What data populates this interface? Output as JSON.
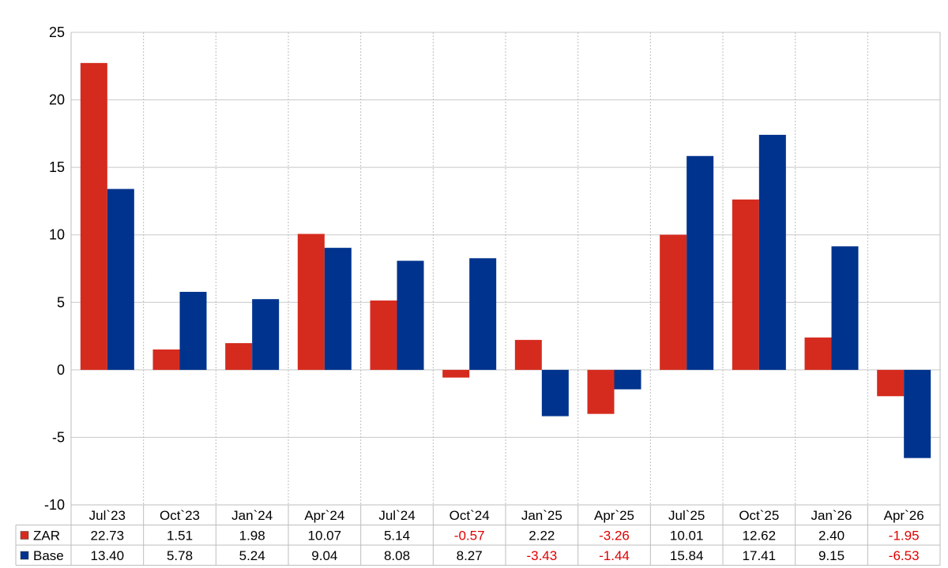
{
  "chart_data": {
    "type": "bar",
    "categories": [
      "Jul`23",
      "Oct`23",
      "Jan`24",
      "Apr`24",
      "Jul`24",
      "Oct`24",
      "Jan`25",
      "Apr`25",
      "Jul`25",
      "Oct`25",
      "Jan`26",
      "Apr`26"
    ],
    "series": [
      {
        "name": "ZAR",
        "color": "#d52b1e",
        "values": [
          22.73,
          1.51,
          1.98,
          10.07,
          5.14,
          -0.57,
          2.22,
          -3.26,
          10.01,
          12.62,
          2.4,
          -1.95
        ],
        "labels": [
          "22.73",
          "1.51",
          "1.98",
          "10.07",
          "5.14",
          "-0.57",
          "2.22",
          "-3.26",
          "10.01",
          "12.62",
          "2.40",
          "-1.95"
        ]
      },
      {
        "name": "Base",
        "color": "#00338d",
        "values": [
          13.4,
          5.78,
          5.24,
          9.04,
          8.08,
          8.27,
          -3.43,
          -1.44,
          15.84,
          17.41,
          9.15,
          -6.53
        ],
        "labels": [
          "13.40",
          "5.78",
          "5.24",
          "9.04",
          "8.08",
          "8.27",
          "-3.43",
          "-1.44",
          "15.84",
          "17.41",
          "9.15",
          "-6.53"
        ]
      }
    ],
    "yticks": [
      "25",
      "20",
      "15",
      "10",
      "5",
      "0",
      "-5",
      "-10"
    ],
    "ylim": [
      -10,
      25
    ],
    "grid": true,
    "legend": "data-table-left",
    "negative_label_color": "#e00000"
  }
}
